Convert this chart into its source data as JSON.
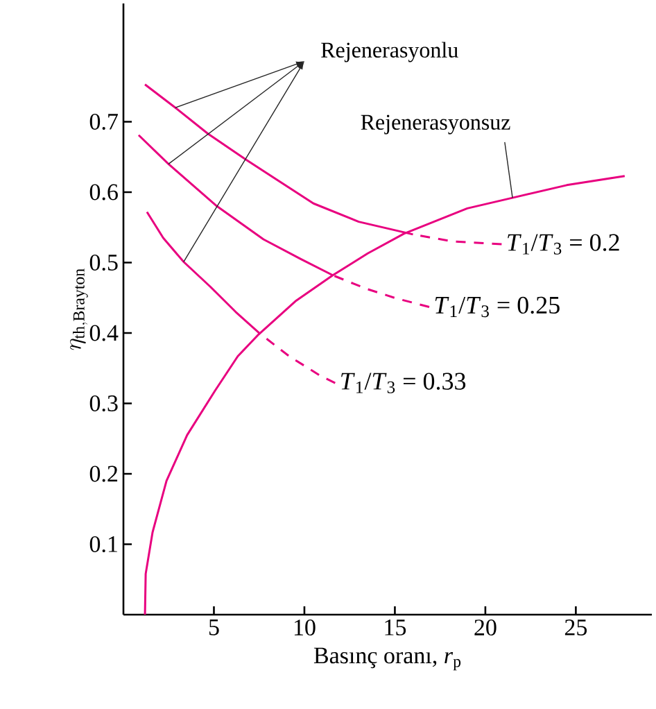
{
  "chart_data": {
    "type": "line",
    "xlabel": "Basınç oranı, *r*$_{p}$",
    "ylabel": "\\eta_{\\mathrm{th,Brayton}}",
    "xlim": [
      0,
      29.2
    ],
    "ylim": [
      0,
      0.868
    ],
    "xticks": [
      5,
      10,
      15,
      20,
      25
    ],
    "yticks": [
      0.1,
      0.2,
      0.3,
      0.4,
      0.5,
      0.6,
      0.7
    ],
    "grid": false,
    "series": [
      {
        "color": "#e8007f",
        "line_style": "solid",
        "x": [
          1.19,
          2.87,
          4.67,
          6.78,
          10.5,
          13.0,
          16.0
        ],
        "values": [
          0.753,
          0.72,
          0.683,
          0.646,
          0.584,
          0.558,
          0.54
        ]
      },
      {
        "color": "#e8007f",
        "line_style": "dashed",
        "x": [
          16.0,
          18.2,
          20.9
        ],
        "values": [
          0.54,
          0.53,
          0.526
        ]
      },
      {
        "color": "#e8007f",
        "line_style": "solid",
        "x": [
          0.84,
          2.49,
          5.17,
          7.74,
          9.8,
          11.57
        ],
        "values": [
          0.681,
          0.64,
          0.58,
          0.533,
          0.505,
          0.482
        ]
      },
      {
        "color": "#e8007f",
        "line_style": "dashed",
        "x": [
          11.57,
          13.4,
          15.1,
          16.9
        ],
        "values": [
          0.482,
          0.463,
          0.449,
          0.437
        ]
      },
      {
        "color": "#e8007f",
        "line_style": "solid",
        "x": [
          1.3,
          2.2,
          3.33,
          4.79,
          6.2,
          7.55
        ],
        "values": [
          0.572,
          0.535,
          0.501,
          0.466,
          0.43,
          0.399
        ]
      },
      {
        "color": "#e8007f",
        "line_style": "dashed",
        "x": [
          7.55,
          9.16,
          10.9,
          11.7
        ],
        "values": [
          0.399,
          0.367,
          0.339,
          0.329
        ]
      },
      {
        "color": "#e8007f",
        "line_style": "solid",
        "x": [
          1.19,
          1.23,
          1.61,
          2.38,
          3.52,
          5.06,
          6.32,
          7.47,
          9.5,
          11.57,
          13.5,
          15.5,
          19.0,
          21.5,
          24.5,
          27.7
        ],
        "values": [
          0,
          0.058,
          0.117,
          0.19,
          0.255,
          0.318,
          0.367,
          0.398,
          0.445,
          0.482,
          0.513,
          0.541,
          0.577,
          0.592,
          0.61,
          0.623
        ]
      }
    ],
    "annotations": [
      "Rejenerasyonlu",
      {
        "text": "Rejenerasyonsuz",
        "x": 21.5,
        "y": 0.592
      },
      {
        "text": "*T*$_{1}$/*T*$_{3}$ = 0.2",
        "x": 20.9,
        "y": 0.526
      },
      {
        "text": "*T*$_{1}$/*T*$_{3}$ = 0.25",
        "x": 16.9,
        "y": 0.437
      },
      {
        "text": "*T*$_{1}$/*T*$_{3}$ = 0.33",
        "x": 11.7,
        "y": 0.329
      }
    ]
  }
}
